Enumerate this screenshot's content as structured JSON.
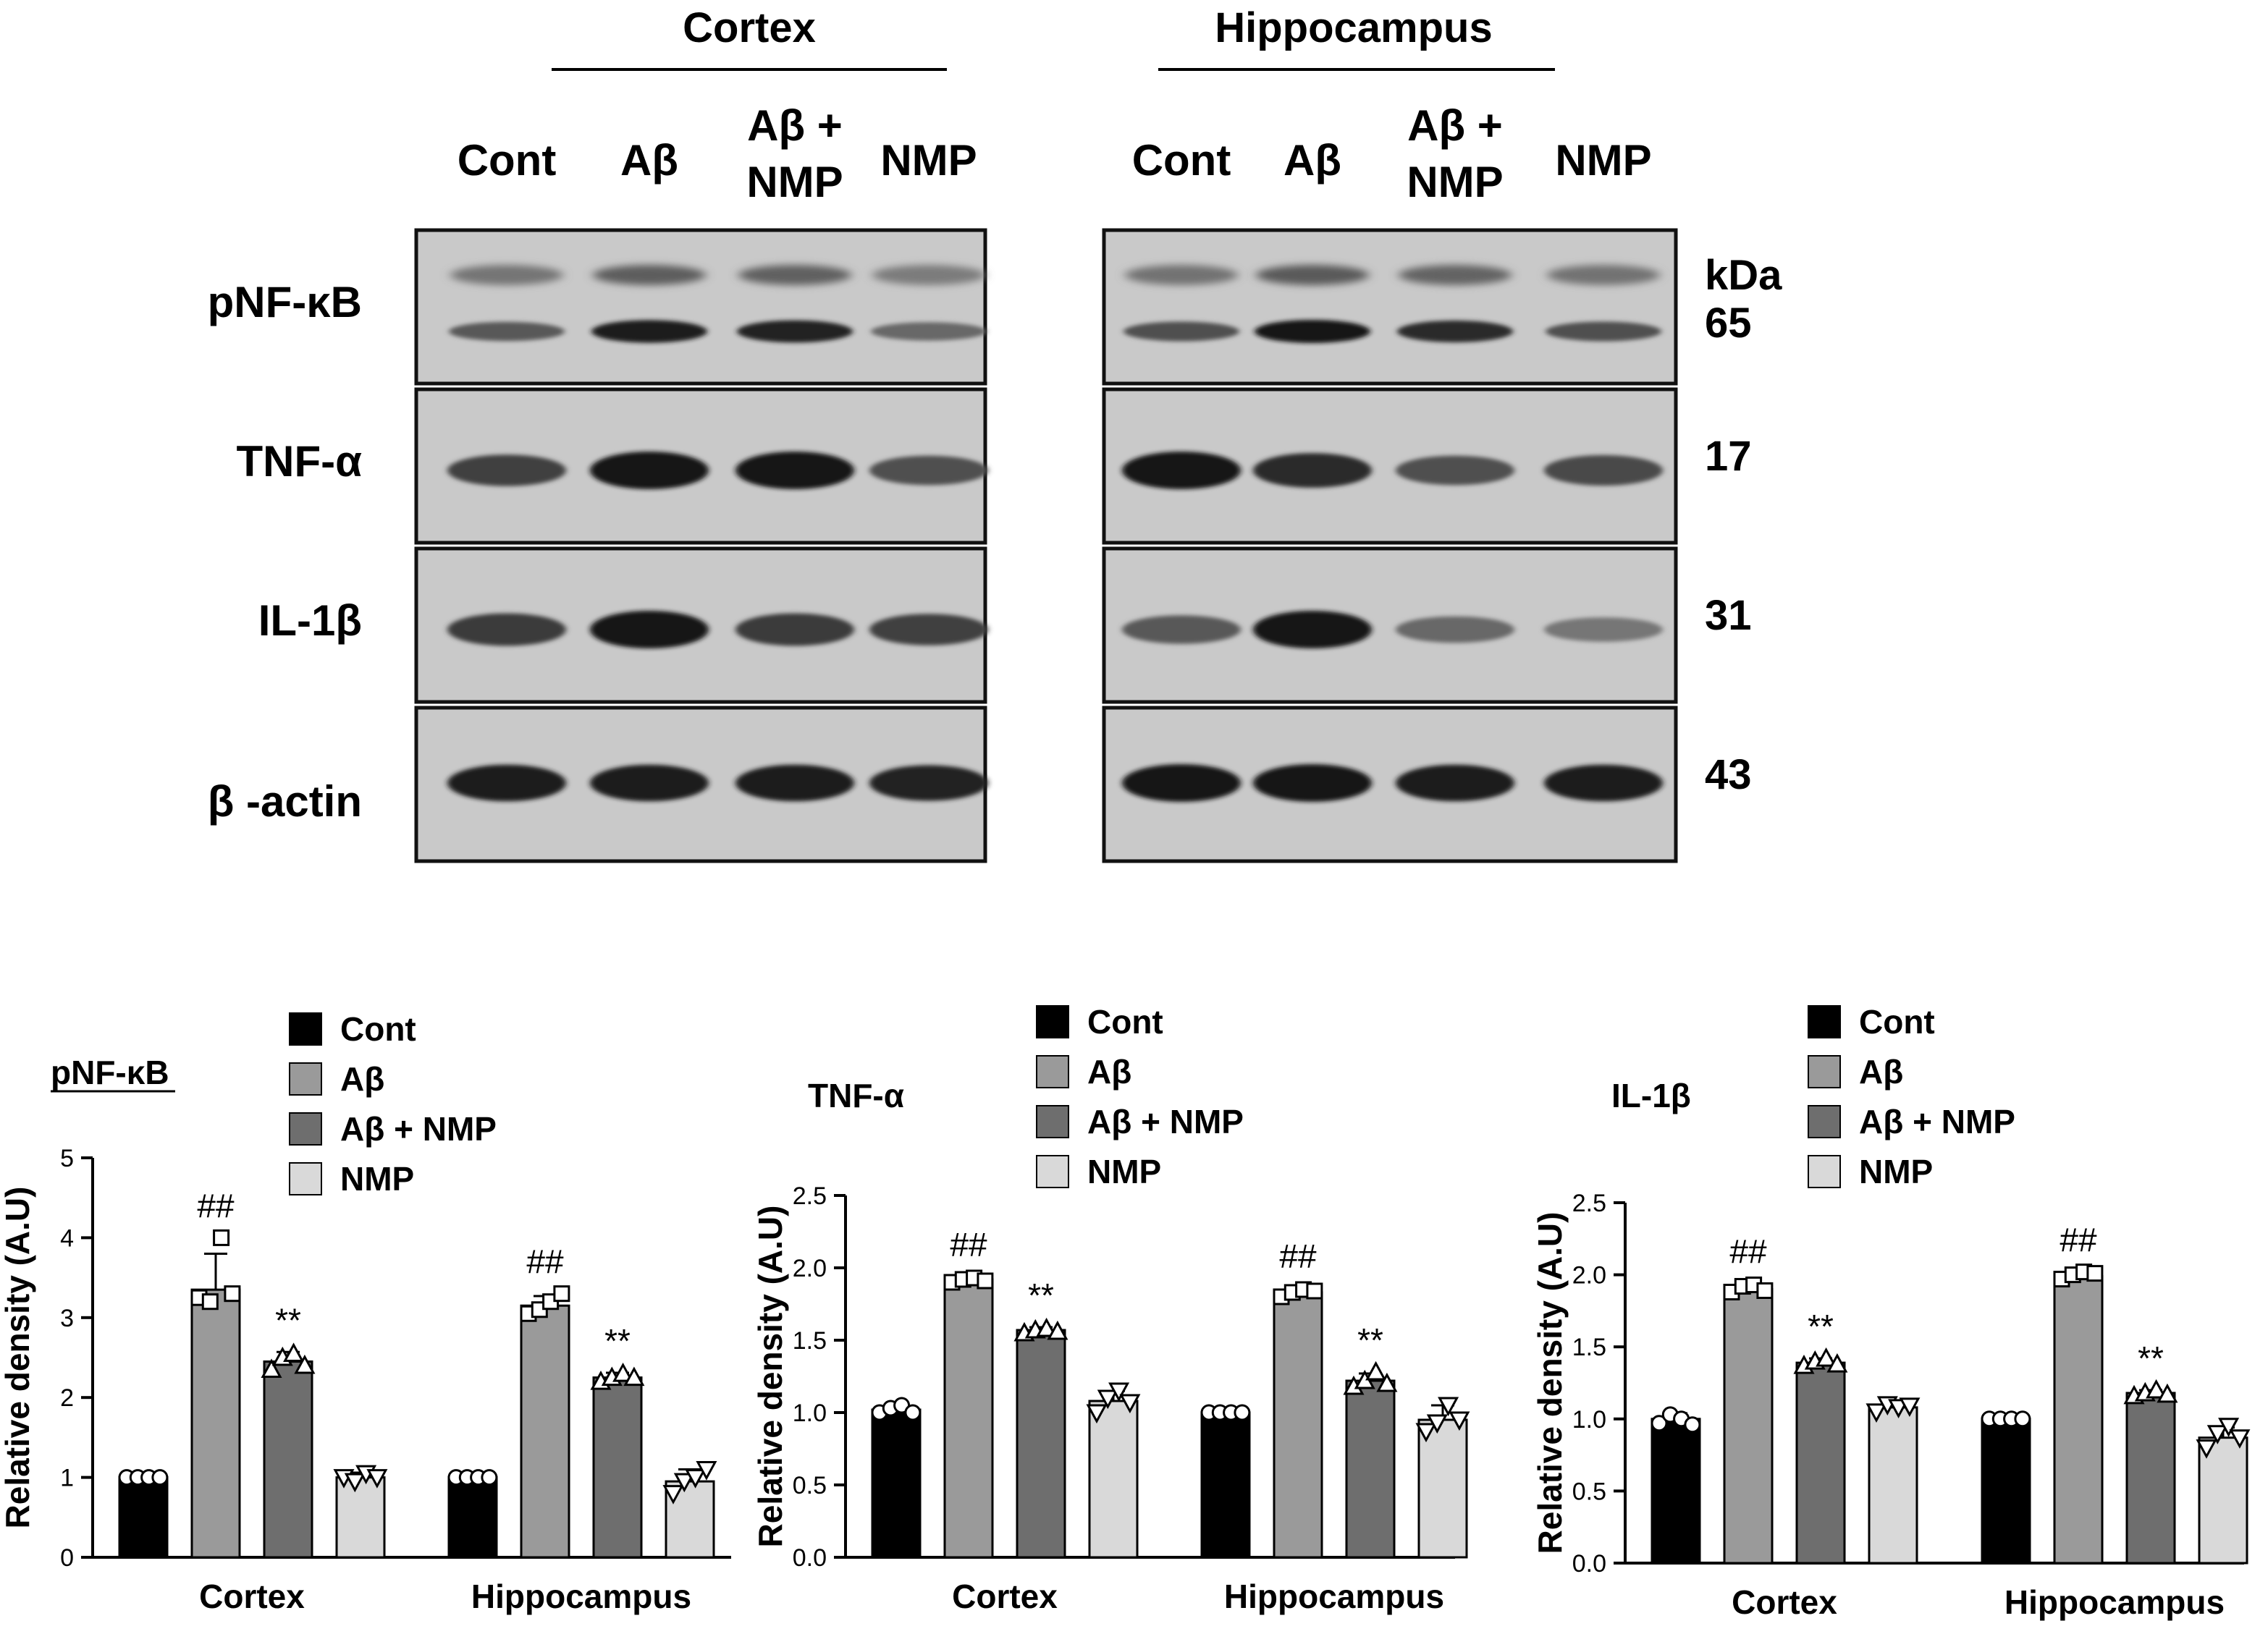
{
  "blot": {
    "regions": [
      {
        "name": "Cortex",
        "lanes": [
          "Cont",
          "Aβ",
          "Aβ +|NMP",
          "NMP"
        ]
      },
      {
        "name": "Hippocampus",
        "lanes": [
          "Cont",
          "Aβ",
          "Aβ +|NMP",
          "NMP"
        ]
      }
    ],
    "rows": [
      {
        "protein": "pNF-κB",
        "kda": "65",
        "cortex": [
          0.55,
          0.95,
          0.9,
          0.45
        ],
        "hippocampus": [
          0.6,
          1.0,
          0.85,
          0.6
        ],
        "double": true
      },
      {
        "protein": "TNF-α",
        "kda": "17",
        "cortex": [
          0.7,
          1.0,
          1.0,
          0.6
        ],
        "hippocampus": [
          1.0,
          0.85,
          0.6,
          0.65
        ],
        "double": false
      },
      {
        "protein": "IL-1β",
        "kda": "31",
        "cortex": [
          0.75,
          1.0,
          0.75,
          0.7
        ],
        "hippocampus": [
          0.55,
          1.0,
          0.45,
          0.35
        ],
        "double": false
      },
      {
        "protein": "β -actin",
        "kda": "43",
        "cortex": [
          0.95,
          0.95,
          0.95,
          0.9
        ],
        "hippocampus": [
          1.0,
          1.0,
          0.95,
          0.95
        ],
        "double": false
      }
    ],
    "kda_header": "kDa"
  },
  "legend": {
    "labels": [
      "Cont",
      "Aβ",
      "Aβ + NMP",
      "NMP"
    ],
    "colors": [
      "#000000",
      "#9a9a9a",
      "#6e6e6e",
      "#d9d9d9"
    ]
  },
  "chart_data": [
    {
      "type": "bar",
      "title": "pNF-κB",
      "ylabel": "Relative density (A.U)",
      "categories": [
        "Cortex",
        "Hippocampus"
      ],
      "ylim": [
        0,
        5
      ],
      "yticks": [
        "0",
        "1",
        "2",
        "3",
        "4",
        "5"
      ],
      "series": [
        {
          "name": "Cont",
          "values": [
            1.0,
            1.0
          ],
          "errors": [
            0,
            0
          ],
          "marker": "circle"
        },
        {
          "name": "Aβ",
          "values": [
            3.35,
            3.15
          ],
          "errors": [
            0.45,
            0.12
          ],
          "marker": "square",
          "annotations": [
            "##",
            "##"
          ]
        },
        {
          "name": "Aβ + NMP",
          "values": [
            2.45,
            2.25
          ],
          "errors": [
            0.12,
            0.06
          ],
          "marker": "triangle",
          "annotations": [
            "**",
            "**"
          ]
        },
        {
          "name": "NMP",
          "values": [
            1.0,
            0.95
          ],
          "errors": [
            0.06,
            0.15
          ],
          "marker": "inv-triangle"
        }
      ],
      "points": [
        [
          [
            1,
            1,
            1,
            1
          ],
          [
            3.25,
            3.2,
            4.0,
            3.3
          ],
          [
            2.35,
            2.5,
            2.55,
            2.4
          ],
          [
            1.0,
            0.95,
            1.05,
            1.0
          ]
        ],
        [
          [
            1,
            1,
            1,
            1
          ],
          [
            3.05,
            3.1,
            3.2,
            3.3
          ],
          [
            2.2,
            2.25,
            2.3,
            2.25
          ],
          [
            0.8,
            0.95,
            1.0,
            1.1
          ]
        ]
      ]
    },
    {
      "type": "bar",
      "title": "TNF-α",
      "ylabel": "Relative density (A.U)",
      "categories": [
        "Cortex",
        "Hippocampus"
      ],
      "ylim": [
        0,
        2.5
      ],
      "yticks": [
        "0.0",
        "0.5",
        "1.0",
        "1.5",
        "2.0",
        "2.5"
      ],
      "series": [
        {
          "name": "Cont",
          "values": [
            1.02,
            1.0
          ],
          "errors": [
            0.03,
            0
          ],
          "marker": "circle"
        },
        {
          "name": "Aβ",
          "values": [
            1.92,
            1.83
          ],
          "errors": [
            0.02,
            0.03
          ],
          "marker": "square",
          "annotations": [
            "##",
            "##"
          ]
        },
        {
          "name": "Aβ + NMP",
          "values": [
            1.57,
            1.22
          ],
          "errors": [
            0.02,
            0.05
          ],
          "marker": "triangle",
          "annotations": [
            "**",
            "**"
          ]
        },
        {
          "name": "NMP",
          "values": [
            1.08,
            0.95
          ],
          "errors": [
            0.07,
            0.1
          ],
          "marker": "inv-triangle"
        }
      ],
      "points": [
        [
          [
            1.0,
            1.03,
            1.05,
            1.0
          ],
          [
            1.9,
            1.92,
            1.93,
            1.91
          ],
          [
            1.55,
            1.57,
            1.58,
            1.56
          ],
          [
            1.0,
            1.1,
            1.15,
            1.07
          ]
        ],
        [
          [
            1,
            1,
            1,
            1
          ],
          [
            1.8,
            1.83,
            1.85,
            1.84
          ],
          [
            1.18,
            1.22,
            1.28,
            1.2
          ],
          [
            0.87,
            0.93,
            1.05,
            0.95
          ]
        ]
      ]
    },
    {
      "type": "bar",
      "title": "IL-1β",
      "ylabel": "Relative density (A.U)",
      "categories": [
        "Cortex",
        "Hippocampus"
      ],
      "ylim": [
        0,
        2.5
      ],
      "yticks": [
        "0.0",
        "0.5",
        "1.0",
        "1.5",
        "2.0",
        "2.5"
      ],
      "series": [
        {
          "name": "Cont",
          "values": [
            1.0,
            1.0
          ],
          "errors": [
            0.04,
            0
          ],
          "marker": "circle"
        },
        {
          "name": "Aβ",
          "values": [
            1.9,
            1.99
          ],
          "errors": [
            0.04,
            0.03
          ],
          "marker": "square",
          "annotations": [
            "##",
            "##"
          ]
        },
        {
          "name": "Aβ + NMP",
          "values": [
            1.39,
            1.18
          ],
          "errors": [
            0.03,
            0.02
          ],
          "marker": "triangle",
          "annotations": [
            "**",
            "**"
          ]
        },
        {
          "name": "NMP",
          "values": [
            1.08,
            0.87
          ],
          "errors": [
            0.04,
            0.07
          ],
          "marker": "inv-triangle"
        }
      ],
      "points": [
        [
          [
            0.97,
            1.03,
            1.0,
            0.96
          ],
          [
            1.88,
            1.92,
            1.93,
            1.89
          ],
          [
            1.37,
            1.4,
            1.42,
            1.38
          ],
          [
            1.05,
            1.1,
            1.08,
            1.09
          ]
        ],
        [
          [
            1,
            1,
            1,
            1
          ],
          [
            1.97,
            2.0,
            2.02,
            2.01
          ],
          [
            1.16,
            1.18,
            1.2,
            1.17
          ],
          [
            0.8,
            0.9,
            0.95,
            0.87
          ]
        ]
      ]
    }
  ]
}
